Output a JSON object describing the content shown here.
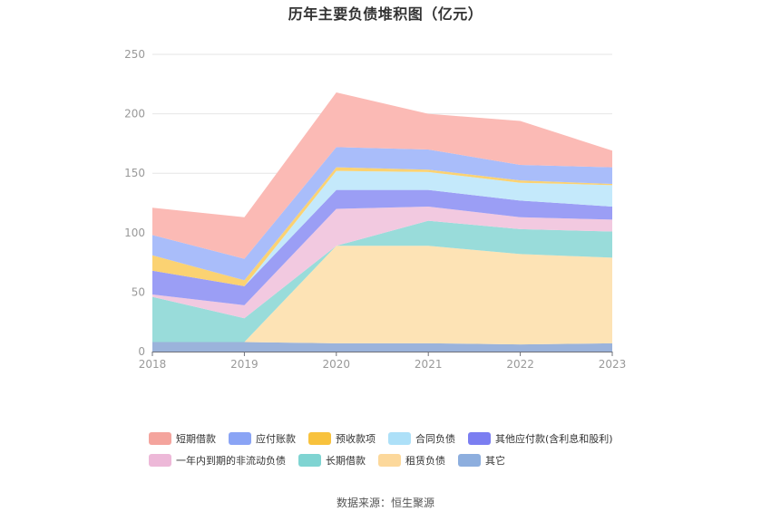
{
  "title": "历年主要负债堆积图（亿元）",
  "source": "数据来源：恒生聚源",
  "chart_data": {
    "type": "area",
    "stacked": true,
    "categories": [
      "2018",
      "2019",
      "2020",
      "2021",
      "2022",
      "2023"
    ],
    "ylim": [
      0,
      250
    ],
    "yticks": [
      0,
      50,
      100,
      150,
      200,
      250
    ],
    "grid": true,
    "legend_position": "bottom",
    "series": [
      {
        "name": "其它",
        "color": "#9bb3db",
        "values": [
          8,
          8,
          7,
          7,
          6,
          7
        ]
      },
      {
        "name": "租赁负债",
        "color": "#fde3b5",
        "values": [
          0,
          0,
          82,
          82,
          76,
          72
        ]
      },
      {
        "name": "长期借款",
        "color": "#99dcda",
        "values": [
          38,
          20,
          0,
          21,
          21,
          22
        ]
      },
      {
        "name": "一年内到期的非流动负债",
        "color": "#f2c9e0",
        "values": [
          2,
          11,
          31,
          12,
          10,
          10
        ]
      },
      {
        "name": "其他应付款(含利息和股利)",
        "color": "#9b9ef5",
        "values": [
          20,
          16,
          16,
          14,
          14,
          11
        ]
      },
      {
        "name": "合同负债",
        "color": "#c4e9fb",
        "values": [
          0,
          0,
          16,
          15,
          15,
          18
        ]
      },
      {
        "name": "预收款项",
        "color": "#fbd272",
        "values": [
          13,
          5,
          3,
          2,
          2,
          1
        ]
      },
      {
        "name": "应付账款",
        "color": "#a9bdfa",
        "values": [
          17,
          18,
          17,
          17,
          13,
          14
        ]
      },
      {
        "name": "短期借款",
        "color": "#fbbab5",
        "values": [
          23,
          35,
          46,
          30,
          37,
          14
        ]
      }
    ],
    "legend_swatches": {
      "短期借款": "#f4a49d",
      "应付账款": "#8aa4f5",
      "预收款项": "#f8c23d",
      "合同负债": "#ade0f8",
      "其他应付款(含利息和股利)": "#7b7ef1",
      "一年内到期的非流动负债": "#edb8d8",
      "长期借款": "#7fd4d2",
      "租赁负债": "#fcd89b",
      "其它": "#8daede"
    }
  },
  "legend": {
    "row1": [
      "短期借款",
      "应付账款",
      "预收款项",
      "合同负债",
      "其他应付款(含利息和股利)"
    ],
    "row2": [
      "一年内到期的非流动负债",
      "长期借款",
      "租赁负债",
      "其它"
    ]
  }
}
